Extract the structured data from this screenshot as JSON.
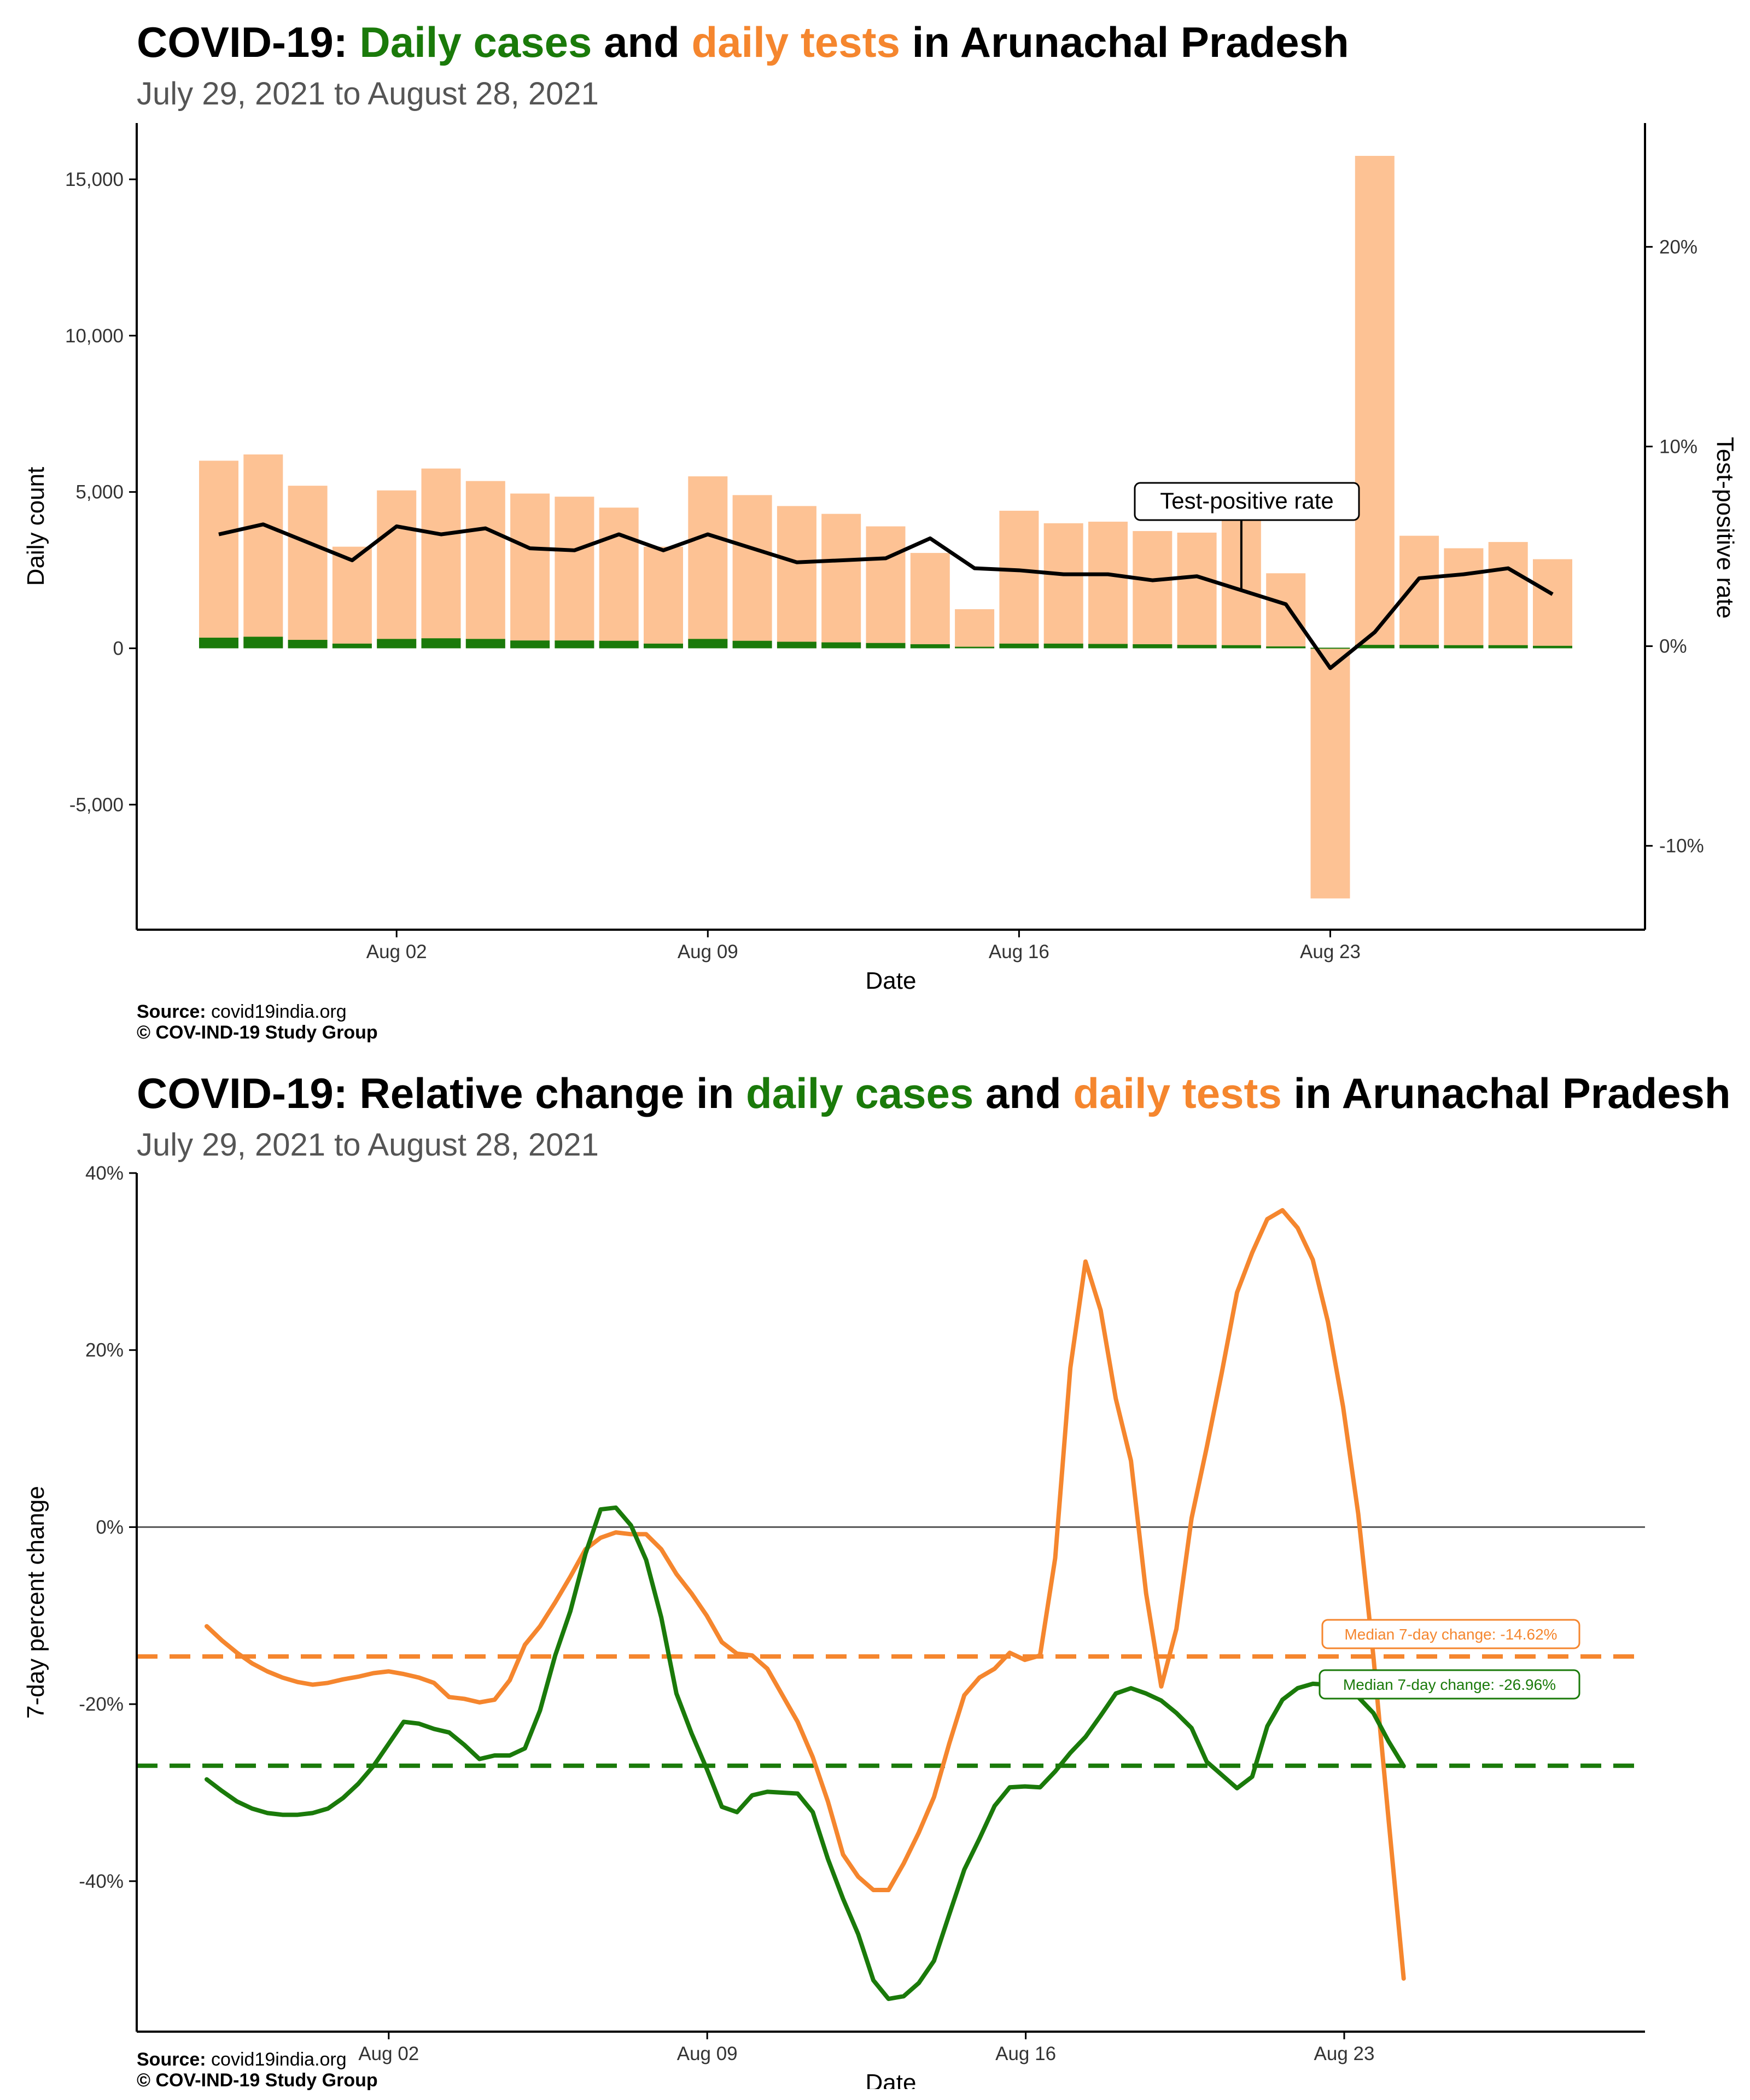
{
  "top": {
    "title_prefix": "COVID-19: ",
    "title_cases": "Daily cases",
    "title_and": " and ",
    "title_tests": "daily tests",
    "title_suffix": " in Arunachal Pradesh",
    "subtitle": "July 29, 2021 to August 28, 2021",
    "source_label": "Source:",
    "source_value": " covid19india.org",
    "copyright": "© COV-IND-19 Study Group"
  },
  "bottom": {
    "title_prefix": "COVID-19: Relative change in ",
    "title_cases": "daily cases",
    "title_and": " and ",
    "title_tests": "daily tests",
    "title_suffix": " in Arunachal Pradesh",
    "subtitle": "July 29, 2021 to August 28, 2021",
    "source_label": "Source:",
    "source_value": " covid19india.org",
    "copyright": "© COV-IND-19 Study Group"
  },
  "colors": {
    "cases": "#1a7a0a",
    "tests": "#f5862e",
    "tests_bar": "#fdc294",
    "tpr_line": "#000000"
  },
  "chart_data": [
    {
      "type": "bar",
      "title": "COVID-19: Daily cases and daily tests in Arunachal Pradesh",
      "subtitle": "July 29, 2021 to August 28, 2021",
      "xlabel": "Date",
      "ylabel": "Daily count",
      "y2label": "Test-positive rate",
      "ylim": [
        -9000,
        16800
      ],
      "y2lim": [
        -14.2,
        26.2
      ],
      "yticks": [
        -5000,
        0,
        5000,
        10000,
        15000
      ],
      "ytick_labels": [
        "-5,000",
        "0",
        "5,000",
        "10,000",
        "15,000"
      ],
      "y2ticks": [
        -10,
        0,
        10,
        20
      ],
      "y2tick_labels": [
        "-10%",
        "0%",
        "10%",
        "20%"
      ],
      "xticks": [
        "2021-08-02",
        "2021-08-09",
        "2021-08-16",
        "2021-08-23"
      ],
      "xtick_labels": [
        "Aug 02",
        "Aug 09",
        "Aug 16",
        "Aug 23"
      ],
      "x": [
        "2021-07-29",
        "2021-07-30",
        "2021-07-31",
        "2021-08-01",
        "2021-08-02",
        "2021-08-03",
        "2021-08-04",
        "2021-08-05",
        "2021-08-06",
        "2021-08-07",
        "2021-08-08",
        "2021-08-09",
        "2021-08-10",
        "2021-08-11",
        "2021-08-12",
        "2021-08-13",
        "2021-08-14",
        "2021-08-15",
        "2021-08-16",
        "2021-08-17",
        "2021-08-18",
        "2021-08-19",
        "2021-08-20",
        "2021-08-21",
        "2021-08-22",
        "2021-08-23",
        "2021-08-24",
        "2021-08-25",
        "2021-08-26",
        "2021-08-27",
        "2021-08-28"
      ],
      "series": [
        {
          "name": "Daily tests",
          "values": [
            6000,
            6200,
            5200,
            3250,
            5050,
            5750,
            5350,
            4950,
            4850,
            4500,
            3250,
            5500,
            4900,
            4550,
            4300,
            3900,
            3050,
            1250,
            4400,
            4000,
            4050,
            3750,
            3700,
            4250,
            2400,
            -8000,
            15750,
            3600,
            3200,
            3400,
            2850
          ]
        },
        {
          "name": "Daily cases",
          "values": [
            340,
            370,
            270,
            150,
            300,
            320,
            300,
            250,
            250,
            240,
            150,
            300,
            240,
            210,
            190,
            170,
            130,
            50,
            150,
            150,
            140,
            130,
            110,
            100,
            60,
            20,
            110,
            110,
            100,
            100,
            80
          ]
        },
        {
          "name": "Test-positive rate",
          "values": [
            5.6,
            6.1,
            5.2,
            4.3,
            6.0,
            5.6,
            5.9,
            4.9,
            4.8,
            5.6,
            4.8,
            5.6,
            4.9,
            4.2,
            4.3,
            4.4,
            5.4,
            3.9,
            3.8,
            3.6,
            3.6,
            3.3,
            3.5,
            2.8,
            2.1,
            -1.1,
            0.7,
            3.4,
            3.6,
            3.9,
            2.6
          ]
        }
      ],
      "annotation": "Test-positive rate"
    },
    {
      "type": "line",
      "title": "COVID-19: Relative change in daily cases and daily tests in Arunachal Pradesh",
      "subtitle": "July 29, 2021 to August 28, 2021",
      "xlabel": "Date",
      "ylabel": "7-day percent change",
      "ylim": [
        -57,
        40
      ],
      "yticks": [
        -40,
        -20,
        0,
        20,
        40
      ],
      "ytick_labels": [
        "-40%",
        "-20%",
        "0%",
        "20%",
        "40%"
      ],
      "xticks": [
        "2021-08-02",
        "2021-08-09",
        "2021-08-16",
        "2021-08-23"
      ],
      "xtick_labels": [
        "Aug 02",
        "Aug 09",
        "Aug 16",
        "Aug 23"
      ],
      "x_start": "2021-07-29",
      "x_end": "2021-08-28",
      "x_step_days": 0.333,
      "series": [
        {
          "name": "Daily tests",
          "values": [
            -11.2,
            -12.8,
            -14.2,
            -15.4,
            -16.3,
            -17,
            -17.5,
            -17.8,
            -17.6,
            -17.2,
            -16.9,
            -16.5,
            -16.3,
            -16.6,
            -17,
            -17.6,
            -19.2,
            -19.4,
            -19.8,
            -19.5,
            -17.3,
            -13.3,
            -11.2,
            -8.5,
            -5.6,
            -2.5,
            -1.2,
            -0.6,
            -0.8,
            -0.8,
            -2.5,
            -5.3,
            -7.5,
            -10,
            -13,
            -14.3,
            -14.5,
            -16,
            -19,
            -22,
            -26,
            -31,
            -37,
            -39.5,
            -41,
            -41,
            -38,
            -34.5,
            -30.5,
            -24.5,
            -19,
            -17,
            -16,
            -14.2,
            -15,
            -14.5,
            -3.5,
            18,
            30,
            24.5,
            14.5,
            7.5,
            -7.5,
            -18,
            -11.5,
            1,
            9,
            17.5,
            26.5,
            31,
            34.8,
            35.8,
            33.8,
            30.2,
            23.2,
            13.6,
            1.5,
            -14.6,
            -33,
            -51
          ]
        },
        {
          "name": "Daily cases",
          "values": [
            -28.5,
            -29.8,
            -31,
            -31.8,
            -32.3,
            -32.5,
            -32.5,
            -32.3,
            -31.8,
            -30.6,
            -29,
            -27,
            -24.5,
            -22,
            -22.2,
            -22.8,
            -23.2,
            -24.6,
            -26.2,
            -25.8,
            -25.8,
            -25,
            -20.7,
            -14.5,
            -9.5,
            -3,
            2,
            2.2,
            0.2,
            -3.7,
            -10.2,
            -18.8,
            -23.3,
            -27.3,
            -31.6,
            -32.2,
            -30.3,
            -29.9,
            -30,
            -30.1,
            -32.2,
            -37.5,
            -42,
            -46,
            -51.2,
            -53.3,
            -53,
            -51.5,
            -49,
            -43.8,
            -38.7,
            -35.2,
            -31.5,
            -29.4,
            -29.3,
            -29.4,
            -27.6,
            -25.5,
            -23.7,
            -21.3,
            -18.8,
            -18.2,
            -18.8,
            -19.6,
            -21,
            -22.7,
            -26.5,
            -28,
            -29.5,
            -28.2,
            -22.5,
            -19.5,
            -18.2,
            -17.7,
            -17.8,
            -18.2,
            -19.2,
            -21,
            -24.2,
            -27
          ]
        }
      ],
      "reference_lines": [
        {
          "name": "Median 7-day change: -14.62%",
          "value": -14.62,
          "color": "#f5862e"
        },
        {
          "name": "Median 7-day change: -26.96%",
          "value": -26.96,
          "color": "#1a7a0a"
        }
      ]
    }
  ]
}
